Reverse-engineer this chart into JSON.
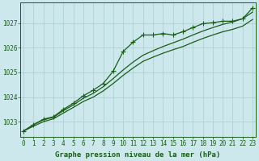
{
  "xlabel": "Graphe pression niveau de la mer (hPa)",
  "hours": [
    0,
    1,
    2,
    3,
    4,
    5,
    6,
    7,
    8,
    9,
    10,
    11,
    12,
    13,
    14,
    15,
    16,
    17,
    18,
    19,
    20,
    21,
    22,
    23
  ],
  "line1_marked": [
    1022.62,
    1022.88,
    1023.1,
    1023.2,
    1023.5,
    1023.75,
    1024.05,
    1024.28,
    1024.55,
    1025.05,
    1025.85,
    1026.23,
    1026.52,
    1026.52,
    1026.58,
    1026.52,
    1026.65,
    1026.82,
    1026.98,
    1027.02,
    1027.08,
    1027.08,
    1027.18,
    1027.62
  ],
  "line2_lower": [
    1022.62,
    1022.82,
    1023.0,
    1023.12,
    1023.35,
    1023.58,
    1023.82,
    1024.0,
    1024.25,
    1024.55,
    1024.88,
    1025.18,
    1025.45,
    1025.62,
    1025.78,
    1025.92,
    1026.05,
    1026.22,
    1026.38,
    1026.52,
    1026.65,
    1026.75,
    1026.88,
    1027.15
  ],
  "line3_upper": [
    1022.62,
    1022.88,
    1023.08,
    1023.18,
    1023.45,
    1023.68,
    1023.95,
    1024.15,
    1024.42,
    1024.75,
    1025.1,
    1025.42,
    1025.7,
    1025.88,
    1026.05,
    1026.2,
    1026.35,
    1026.52,
    1026.68,
    1026.82,
    1026.95,
    1027.05,
    1027.18,
    1027.45
  ],
  "ylim_min": 1022.4,
  "ylim_max": 1027.85,
  "bg_color": "#cce8ec",
  "grid_color": "#aacccc",
  "line_color": "#1a5c1a",
  "marker": "+",
  "markersize": 4,
  "linewidth": 0.9,
  "label_fontsize": 6.5,
  "tick_fontsize": 5.5,
  "yticks": [
    1023,
    1024,
    1025,
    1026,
    1027
  ],
  "xticks": [
    0,
    1,
    2,
    3,
    4,
    5,
    6,
    7,
    8,
    9,
    10,
    11,
    12,
    13,
    14,
    15,
    16,
    17,
    18,
    19,
    20,
    21,
    22,
    23
  ]
}
